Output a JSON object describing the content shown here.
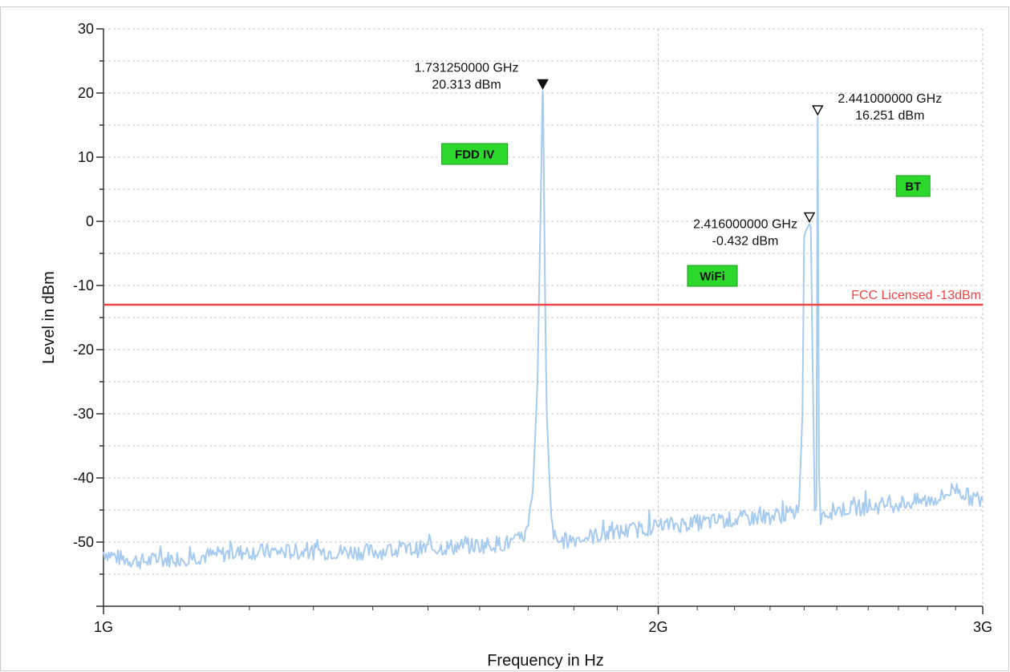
{
  "chart_data": {
    "type": "line",
    "title": "",
    "xlabel": "Frequency in Hz",
    "ylabel": "Level in dBm",
    "x_scale": "log",
    "xlim_ghz": [
      1,
      3
    ],
    "ylim": [
      -60,
      30
    ],
    "y_ticks": [
      30,
      20,
      10,
      0,
      -10,
      -20,
      -30,
      -40,
      -50
    ],
    "y_tick_labels": [
      "30",
      "20",
      "10",
      "0",
      "-10",
      "-20",
      "-30",
      "-40",
      "-50"
    ],
    "x_ticks": [
      {
        "value_ghz": 1,
        "label": "1G"
      },
      {
        "value_ghz": 2,
        "label": "2G"
      },
      {
        "value_ghz": 3,
        "label": "3G"
      }
    ],
    "grid": true,
    "series_color": "#a7cbef",
    "series": [
      {
        "x_ghz": [
          1.0,
          1.02,
          1.05,
          1.1,
          1.15,
          1.2,
          1.3,
          1.4,
          1.5,
          1.6,
          1.68,
          1.7,
          1.71,
          1.72,
          1.725,
          1.7285,
          1.7305,
          1.7313,
          1.732,
          1.734,
          1.737,
          1.74,
          1.75,
          1.76,
          1.8,
          1.9,
          2.0,
          2.1,
          2.2,
          2.3,
          2.37,
          2.385,
          2.395,
          2.4,
          2.405,
          2.41,
          2.416,
          2.42,
          2.425,
          2.432,
          2.437,
          2.441,
          2.445,
          2.45,
          2.455,
          2.46,
          2.5,
          2.6,
          2.7,
          2.8,
          2.85,
          2.9,
          2.95,
          3.0
        ],
        "y_dbm": [
          -51.5,
          -52.5,
          -53,
          -52.5,
          -52,
          -51.5,
          -51.5,
          -51.5,
          -51,
          -50.5,
          -50,
          -48,
          -42,
          -25,
          -5,
          10,
          19,
          20.3,
          19,
          5,
          -15,
          -30,
          -47,
          -50,
          -49.5,
          -48.5,
          -47.5,
          -47,
          -46.5,
          -46,
          -45.5,
          -44,
          -30,
          -2.5,
          -1.5,
          -1,
          -0.4,
          -1,
          -20,
          -44,
          -44.5,
          16.25,
          -40,
          -46,
          -45,
          -45.5,
          -45,
          -44.5,
          -44,
          -43.5,
          -43,
          -41.5,
          -43,
          -43.5
        ]
      }
    ],
    "limit_line": {
      "label": "FCC Licensed -13dBm",
      "value": -13,
      "color": "#f04646"
    },
    "markers": [
      {
        "freq_label": "1.731250000 GHz",
        "level_label": "20.313 dBm",
        "x_ghz": 1.73125,
        "y": 20.313,
        "filled": true
      },
      {
        "freq_label": "2.441000000 GHz",
        "level_label": "16.251 dBm",
        "x_ghz": 2.441,
        "y": 16.251,
        "filled": false
      },
      {
        "freq_label": "2.416000000 GHz",
        "level_label": "-0.432 dBm",
        "x_ghz": 2.416,
        "y": -0.432,
        "filled": false
      }
    ],
    "band_labels": [
      {
        "label": "FDD IV",
        "x_ghz": 1.59,
        "y": 10.5
      },
      {
        "label": "BT",
        "x_ghz": 2.75,
        "y": 5.5
      },
      {
        "label": "WiFi",
        "x_ghz": 2.14,
        "y": -8.5
      }
    ]
  }
}
